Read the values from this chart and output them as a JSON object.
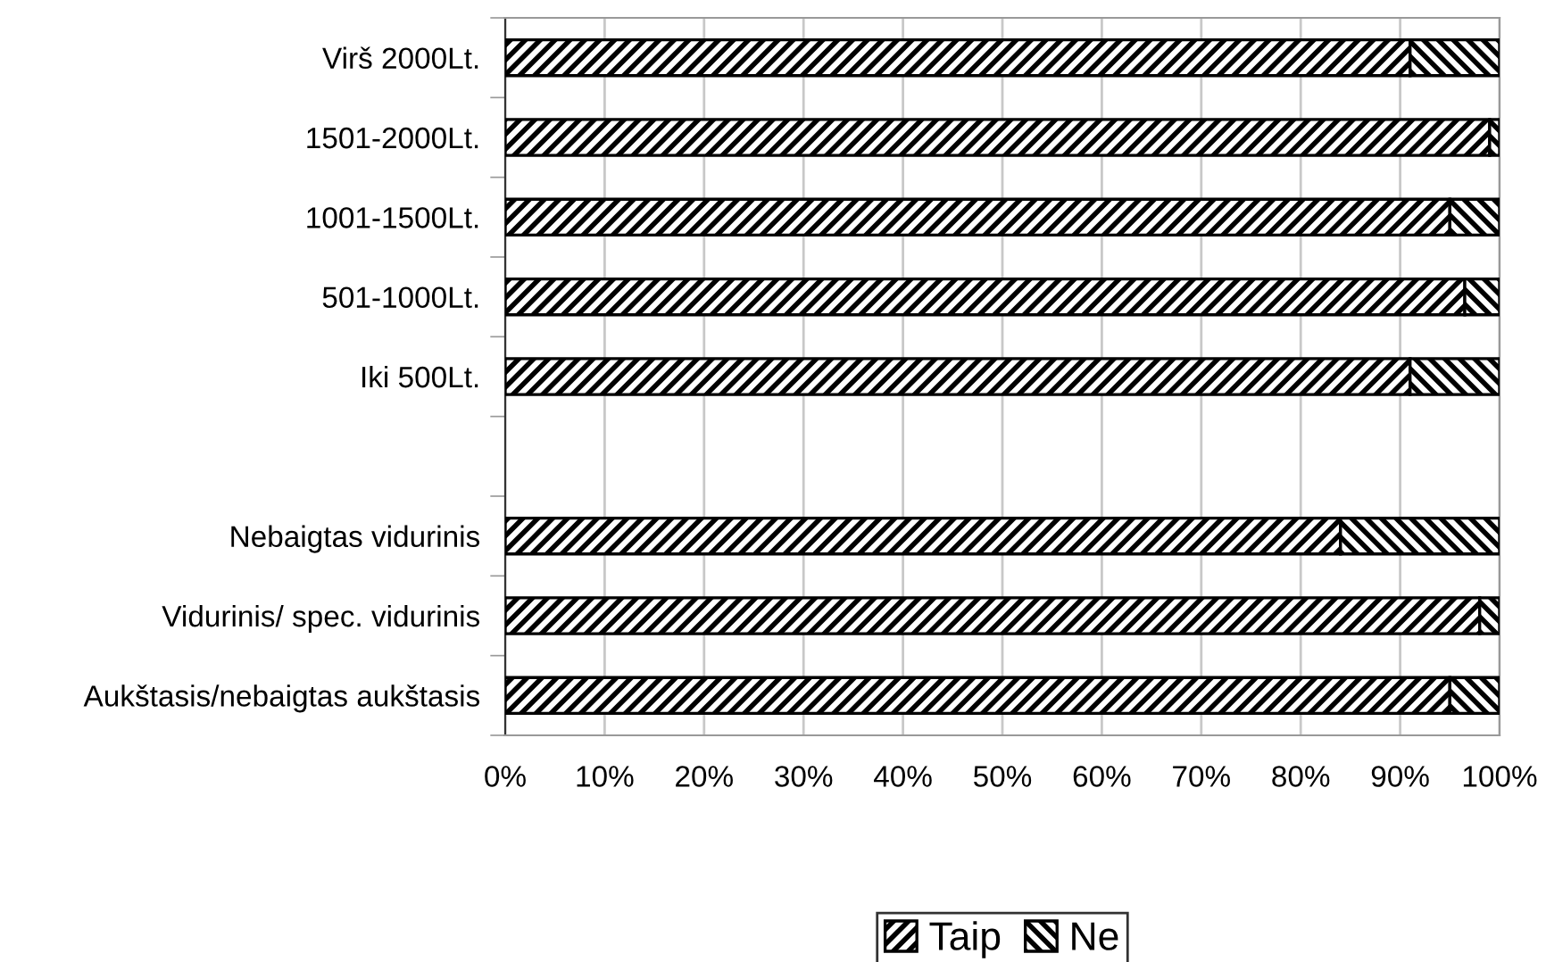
{
  "chart_data": {
    "type": "bar",
    "orientation": "horizontal",
    "stacked": true,
    "categories": [
      "Virš 2000Lt.",
      "1501-2000Lt.",
      "1001-1500Lt.",
      "501-1000Lt.",
      "Iki 500Lt.",
      null,
      "Nebaigtas vidurinis",
      "Vidurinis/ spec. vidurinis",
      "Aukštasis/nebaigtas aukštasis"
    ],
    "series": [
      {
        "name": "Taip",
        "color": "#000000",
        "values": [
          91,
          99,
          95,
          96.5,
          91,
          null,
          84,
          98,
          95
        ]
      },
      {
        "name": "Ne",
        "color": "#000000",
        "values": [
          9,
          1,
          5,
          3.5,
          9,
          null,
          16,
          2,
          5
        ]
      }
    ],
    "xlim": [
      0,
      100
    ],
    "xticks": [
      {
        "value": 0,
        "label": "0%"
      },
      {
        "value": 10,
        "label": "10%"
      },
      {
        "value": 20,
        "label": "20%"
      },
      {
        "value": 30,
        "label": "30%"
      },
      {
        "value": 40,
        "label": "40%"
      },
      {
        "value": 50,
        "label": "50%"
      },
      {
        "value": 60,
        "label": "60%"
      },
      {
        "value": 70,
        "label": "70%"
      },
      {
        "value": 80,
        "label": "80%"
      },
      {
        "value": 90,
        "label": "90%"
      },
      {
        "value": 100,
        "label": "100%"
      }
    ],
    "grid": "x",
    "legend": "bottom"
  }
}
